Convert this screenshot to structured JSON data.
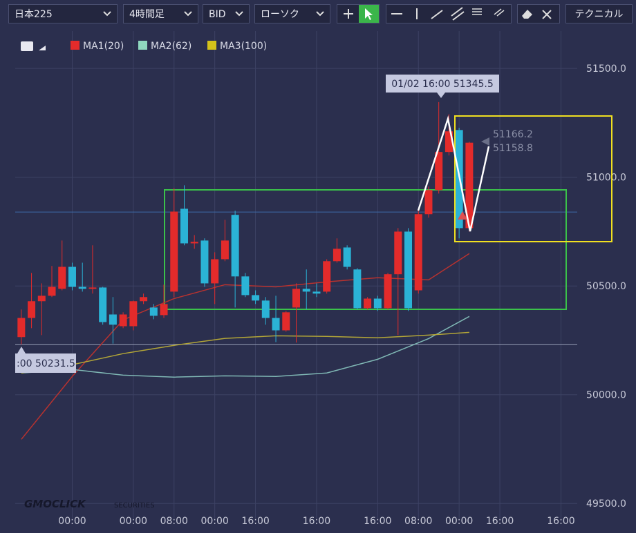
{
  "toolbar": {
    "symbol": "日本225",
    "timeframe": "4時間足",
    "price_type": "BID",
    "chart_style": "ローソク",
    "indicators": "テクニカル"
  },
  "watermark": {
    "brand": "GMOCLICK",
    "sub": "SECURITIES"
  },
  "chart_data": {
    "type": "candlestick",
    "x": [
      0,
      1,
      2,
      3,
      4,
      5,
      6,
      7,
      8,
      9,
      10,
      11,
      12,
      13,
      14,
      15,
      16,
      17,
      18,
      19,
      20,
      21,
      22,
      23,
      24,
      25,
      26,
      27,
      28,
      29,
      30,
      31,
      32,
      33,
      34,
      35,
      36,
      37,
      38,
      39,
      40,
      41,
      42,
      43,
      44
    ],
    "candles": {
      "up_color": "#e32b2b",
      "down_color": "#2bb3d6",
      "open": [
        50265,
        50353,
        50430,
        50455,
        50487,
        50588,
        50496,
        50487,
        50493,
        50369,
        50315,
        50315,
        50430,
        50401,
        50366,
        50474,
        50855,
        50696,
        50709,
        50512,
        50623,
        50827,
        50544,
        50458,
        50433,
        50353,
        50296,
        50401,
        50487,
        50474,
        50474,
        50614,
        50677,
        50576,
        50398,
        50442,
        50398,
        50554,
        50750,
        50480,
        50830,
        50941,
        51116,
        51217,
        50766
      ],
      "high": [
        50392,
        50560,
        50512,
        50592,
        50709,
        50607,
        50607,
        50687,
        50496,
        50449,
        50379,
        50433,
        50465,
        50417,
        50506,
        50950,
        50963,
        50734,
        50719,
        50655,
        50804,
        50846,
        50560,
        50480,
        50449,
        50455,
        50385,
        50512,
        50576,
        50512,
        50623,
        50719,
        50687,
        50582,
        50449,
        50455,
        50560,
        50766,
        50766,
        50846,
        50957,
        51345.5,
        51290,
        51227,
        51163
      ],
      "low": [
        50231.5,
        50306,
        50274,
        50449,
        50480,
        50480,
        50474,
        50465,
        50322,
        50235,
        50306,
        50296,
        50417,
        50347,
        50353,
        50449,
        50687,
        50671,
        50496,
        50417,
        50614,
        50401,
        50449,
        50417,
        50322,
        50242,
        50290,
        50240,
        50392,
        50449,
        50465,
        50607,
        50576,
        50392,
        50392,
        50385,
        50392,
        50274,
        50385,
        50465,
        50814,
        50925,
        51100,
        50719,
        50750
      ],
      "close": [
        50353,
        50430,
        50455,
        50496,
        50588,
        50496,
        50487,
        50493,
        50334,
        50322,
        50369,
        50430,
        50449,
        50363,
        50417,
        50842,
        50696,
        50703,
        50512,
        50623,
        50709,
        50544,
        50458,
        50433,
        50353,
        50296,
        50379,
        50487,
        50474,
        50465,
        50614,
        50671,
        50588,
        50398,
        50442,
        50398,
        50554,
        50750,
        50398,
        50830,
        50941,
        51116,
        51211,
        50766,
        51158.8
      ]
    },
    "overlays": [
      {
        "name": "MA1(20)",
        "color": "#e32b2b",
        "line_color": "#b8322f",
        "x": [
          0,
          5,
          10,
          15,
          20,
          25,
          30,
          35,
          40,
          44
        ],
        "values": [
          49795,
          50084,
          50344,
          50442,
          50506,
          50496,
          50519,
          50538,
          50528,
          50649
        ]
      },
      {
        "name": "MA2(62)",
        "color": "#8fd8bf",
        "line_color": "#7fb7b4",
        "x": [
          0,
          5,
          10,
          15,
          20,
          25,
          30,
          35,
          40,
          44
        ],
        "values": [
          50100,
          50116,
          50090,
          50081,
          50087,
          50084,
          50100,
          50163,
          50258,
          50360
        ]
      },
      {
        "name": "MA3(100)",
        "color": "#d4c21a",
        "line_color": "#b3a637",
        "x": [
          0,
          5,
          10,
          15,
          20,
          25,
          30,
          35,
          40,
          44
        ],
        "values": [
          50100,
          50138,
          50189,
          50227,
          50259,
          50271,
          50268,
          50262,
          50274,
          50287
        ]
      }
    ],
    "reference_lines": [
      50840,
      50231.5
    ],
    "annotations": {
      "high_label": "01/02 16:00 51345.5",
      "low_label": ":00 50231.5",
      "price_a": "51166.2",
      "price_b": "51158.8"
    },
    "xlim": [
      -0.6,
      54.6
    ],
    "xticks": [
      {
        "value": 5,
        "label": "00:00"
      },
      {
        "value": 11,
        "label": "00:00"
      },
      {
        "value": 15,
        "label": "08:00"
      },
      {
        "value": 19,
        "label": "00:00"
      },
      {
        "value": 23,
        "label": "16:00"
      },
      {
        "value": 29,
        "label": "16:00"
      },
      {
        "value": 35,
        "label": "16:00"
      },
      {
        "value": 39,
        "label": "08:00"
      },
      {
        "value": 43,
        "label": "00:00"
      },
      {
        "value": 47,
        "label": "16:00"
      },
      {
        "value": 53,
        "label": "16:00"
      }
    ],
    "ylim": [
      49450,
      51545
    ],
    "yticks": [
      {
        "value": 49500,
        "label": "49500.0"
      },
      {
        "value": 50000,
        "label": "50000.0"
      },
      {
        "value": 50500,
        "label": "50500.0"
      },
      {
        "value": 51000,
        "label": "51000.0"
      },
      {
        "value": 51500,
        "label": "51500.0"
      }
    ],
    "grid": true
  }
}
